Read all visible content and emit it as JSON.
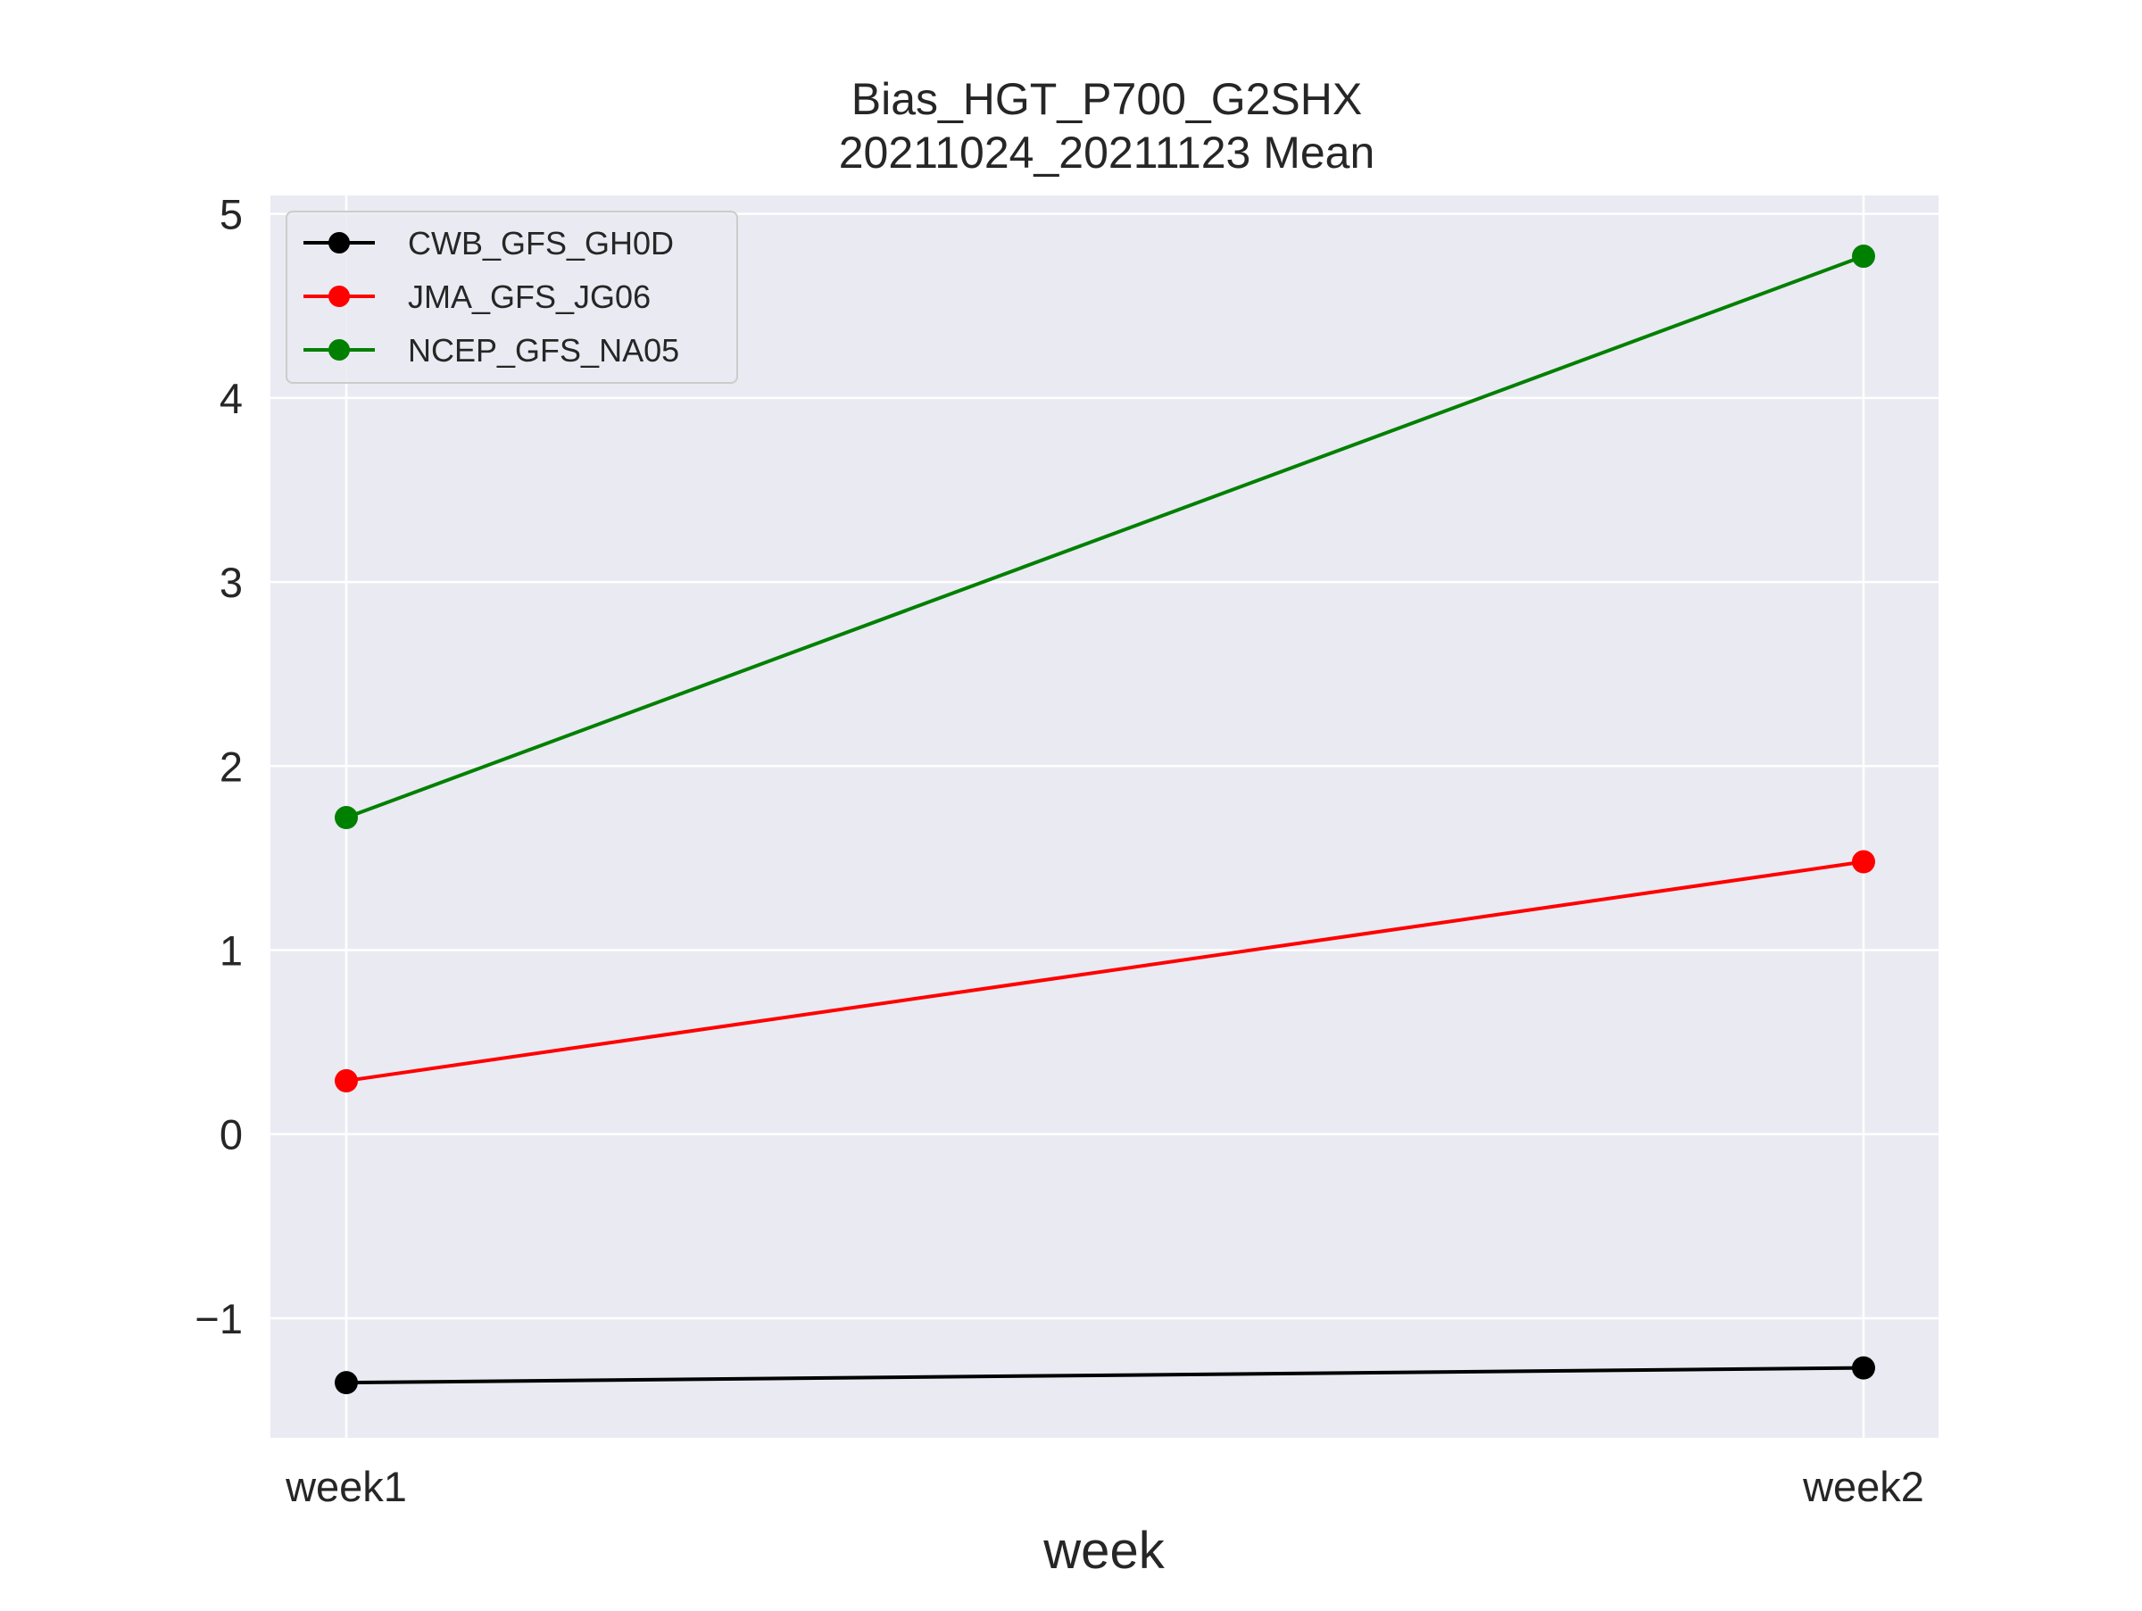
{
  "chart_data": {
    "type": "line",
    "title": "Bias_HGT_P700_G2SHX",
    "subtitle": "20211024_20211123 Mean",
    "xlabel": "week",
    "ylabel": "",
    "categories": [
      "week1",
      "week2"
    ],
    "ylim": [
      -1.65,
      5.1
    ],
    "yticks": [
      -1,
      0,
      1,
      2,
      3,
      4,
      5
    ],
    "ytick_labels": [
      "−1",
      "0",
      "1",
      "2",
      "3",
      "4",
      "5"
    ],
    "grid": true,
    "legend_position": "top-left",
    "series": [
      {
        "name": "CWB_GFS_GH0D",
        "color": "#000000",
        "values": [
          -1.35,
          -1.27
        ]
      },
      {
        "name": "JMA_GFS_JG06",
        "color": "#ff0000",
        "values": [
          0.29,
          1.48
        ]
      },
      {
        "name": "NCEP_GFS_NA05",
        "color": "#008000",
        "values": [
          1.72,
          4.77
        ]
      }
    ]
  },
  "style": {
    "plot_background": "#eaeaf2",
    "grid_color": "#ffffff",
    "text_color": "#262626"
  }
}
